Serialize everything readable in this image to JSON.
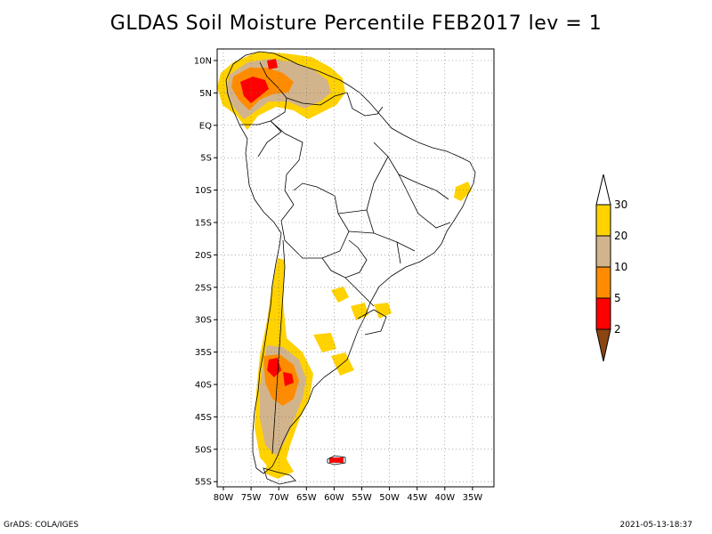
{
  "title": "GLDAS Soil Moisture Percentile FEB2017 lev = 1",
  "footer": {
    "left": "GrADS: COLA/IGES",
    "right": "2021-05-13-18:37"
  },
  "axes": {
    "lat_ticks": [
      "10N",
      "5N",
      "EQ",
      "5S",
      "10S",
      "15S",
      "20S",
      "25S",
      "30S",
      "35S",
      "40S",
      "45S",
      "50S",
      "55S"
    ],
    "lon_ticks": [
      "80W",
      "75W",
      "70W",
      "65W",
      "60W",
      "55W",
      "50W",
      "45W",
      "40W",
      "35W"
    ]
  },
  "colorbar": {
    "labels": [
      "30",
      "20",
      "10",
      "5",
      "2"
    ],
    "colors": {
      "above_30": "#ffffff",
      "20_30": "#ffd200",
      "10_20": "#d2b48c",
      "5_10": "#ff8c00",
      "2_5": "#ff0000",
      "below_2": "#8b4513"
    }
  },
  "colors": {
    "yellow": "#ffd200",
    "tan": "#d2b48c",
    "orange": "#ff8c00",
    "red": "#ff0000",
    "brown": "#8b4513"
  }
}
